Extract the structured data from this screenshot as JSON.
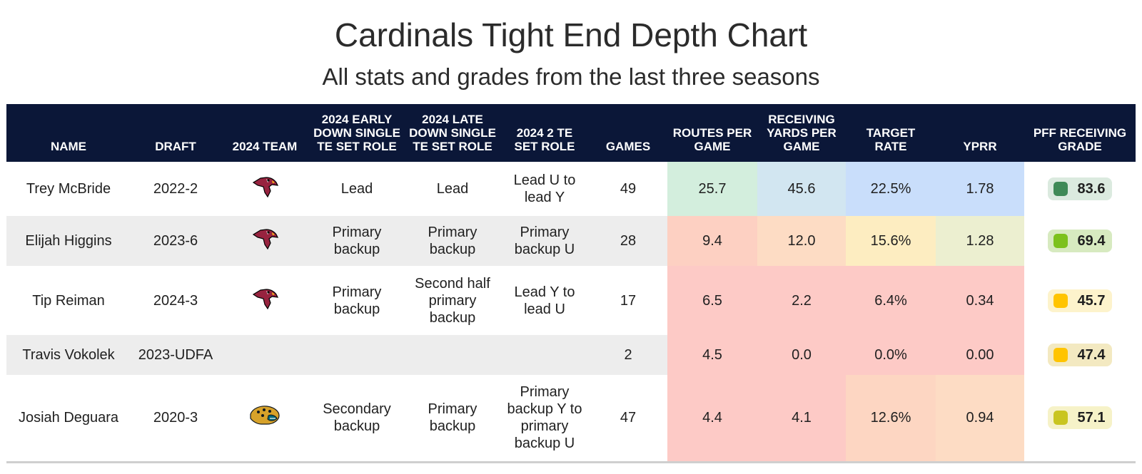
{
  "title": "Cardinals Tight End Depth Chart",
  "subtitle": "All stats and grades from the last three seasons",
  "headers": {
    "name": "NAME",
    "draft": "DRAFT",
    "team": "2024 TEAM",
    "early_down": "2024 EARLY DOWN SINGLE TE SET ROLE",
    "late_down": "2024 LATE DOWN SINGLE TE SET ROLE",
    "two_te": "2024 2 TE SET ROLE",
    "games": "GAMES",
    "routes": "ROUTES PER GAME",
    "rec_yards": "RECEIVING YARDS PER GAME",
    "target_rate": "TARGET RATE",
    "yprr": "YPRR",
    "grade": "PFF RECEIVING GRADE"
  },
  "colors": {
    "header_bg": "#0b1738",
    "alt_row_bg": "#ededed",
    "cardinals_red": "#97233f",
    "grade_high": "#3f8a57",
    "grade_good": "#7cc11d",
    "grade_mid": "#ffc400",
    "grade_low_mid": "#c9c520"
  },
  "rows": [
    {
      "name": "Trey McBride",
      "draft": "2022-2",
      "team_logo": "cardinals-logo",
      "early_down": "Lead",
      "late_down": "Lead",
      "two_te": "Lead U to lead Y",
      "games": "49",
      "routes": "25.7",
      "rec_yards": "45.6",
      "target_rate": "22.5%",
      "yprr": "1.78",
      "grade": "83.6",
      "grade_color": "#3f8a57",
      "grade_bg": "#dbeadf",
      "cell_colors": [
        "#d3eedd",
        "#d2e6f1",
        "#c9defb",
        "#c9defb"
      ]
    },
    {
      "name": "Elijah Higgins",
      "draft": "2023-6",
      "team_logo": "cardinals-logo",
      "early_down": "Primary backup",
      "late_down": "Primary backup",
      "two_te": "Primary backup U",
      "games": "28",
      "routes": "9.4",
      "rec_yards": "12.0",
      "target_rate": "15.6%",
      "yprr": "1.28",
      "grade": "69.4",
      "grade_color": "#7cc11d",
      "grade_bg": "#d7eac0",
      "cell_colors": [
        "#fdd0c2",
        "#fddcc4",
        "#fdedc1",
        "#ecefd0"
      ]
    },
    {
      "name": "Tip Reiman",
      "draft": "2024-3",
      "team_logo": "cardinals-logo",
      "early_down": "Primary backup",
      "late_down": "Second half primary backup",
      "two_te": "Lead Y to lead U",
      "games": "17",
      "routes": "6.5",
      "rec_yards": "2.2",
      "target_rate": "6.4%",
      "yprr": "0.34",
      "grade": "45.7",
      "grade_color": "#ffc400",
      "grade_bg": "#fdf3cc",
      "cell_colors": [
        "#fdcac6",
        "#fdcac6",
        "#fdcac6",
        "#fdcac6"
      ]
    },
    {
      "name": "Travis Vokolek",
      "draft": "2023-UDFA",
      "team_logo": "",
      "early_down": "",
      "late_down": "",
      "two_te": "",
      "games": "2",
      "routes": "4.5",
      "rec_yards": "0.0",
      "target_rate": "0.0%",
      "yprr": "0.00",
      "grade": "47.4",
      "grade_color": "#ffc400",
      "grade_bg": "#f3e9c1",
      "cell_colors": [
        "#fdcac6",
        "#fdcac6",
        "#fdcac6",
        "#fdcac6"
      ]
    },
    {
      "name": "Josiah Deguara",
      "draft": "2020-3",
      "team_logo": "jaguars-logo",
      "early_down": "Secondary backup",
      "late_down": "Primary backup",
      "two_te": "Primary backup Y to primary backup U",
      "games": "47",
      "routes": "4.4",
      "rec_yards": "4.1",
      "target_rate": "12.6%",
      "yprr": "0.94",
      "grade": "57.1",
      "grade_color": "#c9c520",
      "grade_bg": "#f6f2c8",
      "cell_colors": [
        "#fdcac6",
        "#fdcac6",
        "#fdd6c2",
        "#fddcc4"
      ]
    }
  ]
}
